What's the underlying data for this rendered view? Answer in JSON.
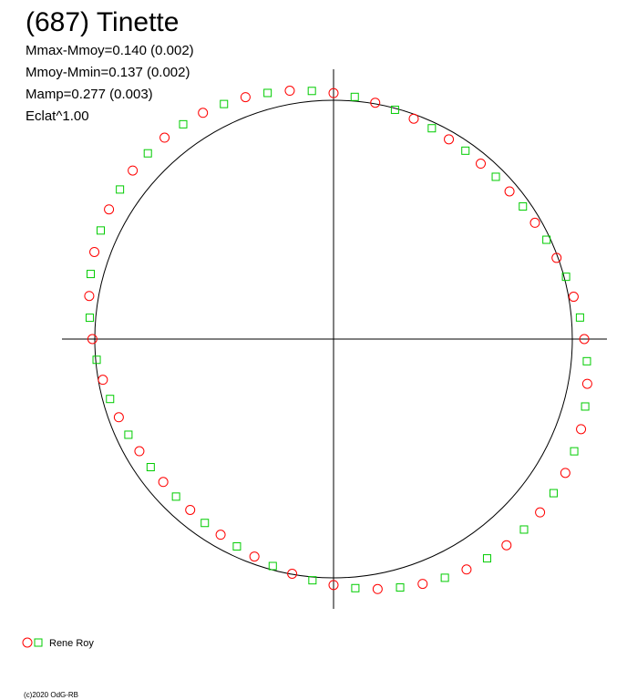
{
  "chart_data": {
    "type": "polar-scatter",
    "title": "(687) Tinette",
    "stats": [
      "Mmax-Mmoy=0.140 (0.002)",
      "Mmoy-Mmin=0.137 (0.002)",
      "Mamp=0.277 (0.003)",
      "Eclat^1.00"
    ],
    "series": [
      {
        "name": "Rene Roy",
        "marker": "circle",
        "color": "#ff0000",
        "theta": [
          0,
          10,
          20,
          30,
          40,
          50,
          60,
          70,
          80,
          90,
          100,
          110,
          120,
          130,
          140,
          150,
          160,
          170,
          180,
          190,
          200,
          210,
          220,
          230,
          240,
          250,
          260,
          270,
          280,
          290,
          300,
          310,
          320,
          330,
          340,
          350
        ],
        "r": [
          1.05,
          1.021,
          0.994,
          0.974,
          0.962,
          0.959,
          0.966,
          0.982,
          1.005,
          1.03,
          1.056,
          1.078,
          1.094,
          1.101,
          1.098,
          1.086,
          1.066,
          1.039,
          1.01,
          0.981,
          0.957,
          0.939,
          0.931,
          0.934,
          0.946,
          0.969,
          0.998,
          1.03,
          1.063,
          1.091,
          1.114,
          1.127,
          1.129,
          1.121,
          1.103,
          1.079
        ]
      },
      {
        "name": "Rene Roy",
        "marker": "square",
        "color": "#00cc00",
        "theta": [
          5,
          15,
          25,
          35,
          45,
          55,
          65,
          75,
          85,
          95,
          105,
          115,
          125,
          135,
          145,
          155,
          165,
          175,
          185,
          195,
          205,
          215,
          225,
          235,
          245,
          255,
          265,
          275,
          285,
          295,
          305,
          315,
          325,
          335,
          345,
          355
        ],
        "r": [
          1.036,
          1.008,
          0.984,
          0.968,
          0.961,
          0.963,
          0.974,
          0.994,
          1.018,
          1.043,
          1.067,
          1.086,
          1.098,
          1.1,
          1.092,
          1.076,
          1.053,
          1.025,
          0.996,
          0.969,
          0.948,
          0.935,
          0.933,
          0.94,
          0.958,
          0.984,
          1.014,
          1.047,
          1.077,
          1.103,
          1.121,
          1.128,
          1.125,
          1.112,
          1.091,
          1.065
        ]
      }
    ],
    "footer": "(c)2020 OdG-RB"
  }
}
